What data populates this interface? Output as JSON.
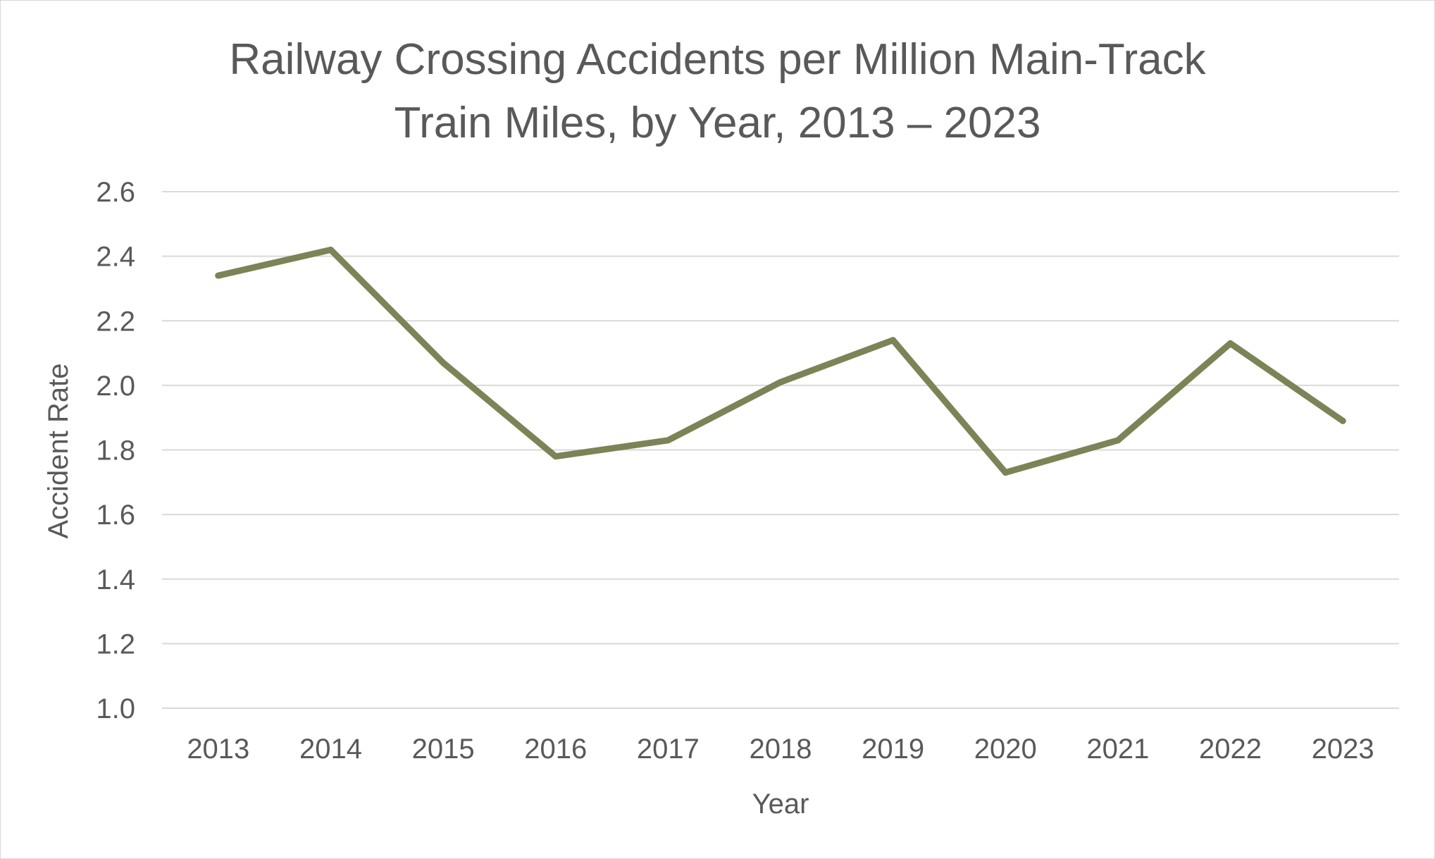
{
  "chart_data": {
    "type": "line",
    "title": [
      "Railway Crossing Accidents per Million Main-Track",
      "Train Miles, by Year, 2013 – 2023"
    ],
    "xlabel": "Year",
    "ylabel": "Accident Rate",
    "categories": [
      "2013",
      "2014",
      "2015",
      "2016",
      "2017",
      "2018",
      "2019",
      "2020",
      "2021",
      "2022",
      "2023"
    ],
    "series": [
      {
        "values": [
          2.34,
          2.42,
          2.07,
          1.78,
          1.83,
          2.01,
          2.14,
          1.73,
          1.83,
          2.13,
          1.89
        ],
        "color": "#7a8456"
      }
    ],
    "ylim": [
      1.0,
      2.6
    ],
    "yticks": [
      "1.0",
      "1.2",
      "1.4",
      "1.6",
      "1.8",
      "2.0",
      "2.2",
      "2.4",
      "2.6"
    ],
    "grid": true,
    "legend": "none",
    "gridline_color": "#d9d9d9",
    "text_color": "#595959"
  }
}
